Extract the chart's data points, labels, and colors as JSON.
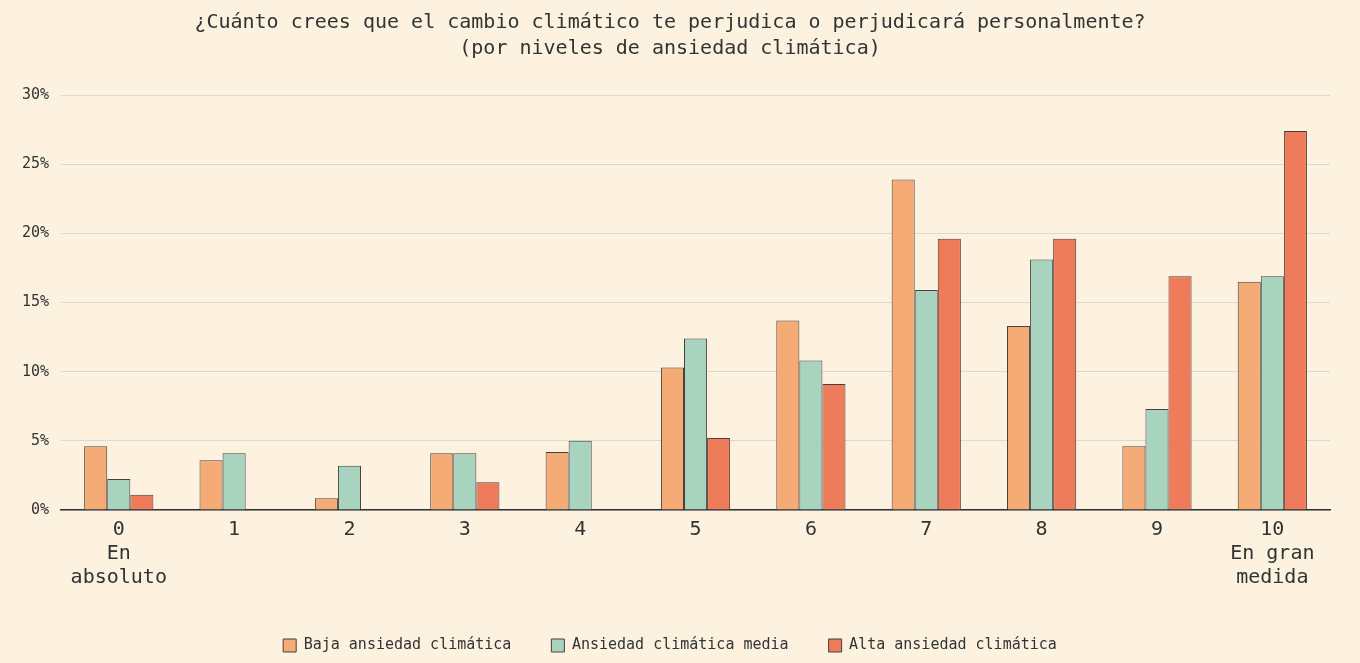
{
  "chart_data": {
    "type": "bar",
    "title": "¿Cuánto crees que el cambio climático te perjudica o perjudicará personalmente?",
    "subtitle": "(por niveles de ansiedad climática)",
    "categories": [
      "0\nEn\nabsoluto",
      "1",
      "2",
      "3",
      "4",
      "5",
      "6",
      "7",
      "8",
      "9",
      "10\nEn gran\nmedida"
    ],
    "series": [
      {
        "name": "Baja ansiedad climática",
        "color": "#f4ab76",
        "values": [
          4.6,
          3.6,
          0.85,
          4.1,
          4.2,
          10.3,
          13.7,
          23.9,
          13.3,
          4.6,
          16.5
        ]
      },
      {
        "name": "Ansiedad climática media",
        "color": "#a8d3be",
        "values": [
          2.25,
          4.1,
          3.2,
          4.1,
          5.0,
          12.4,
          10.8,
          15.9,
          18.1,
          7.3,
          16.9
        ]
      },
      {
        "name": "Alta ansiedad climática",
        "color": "#ee7b5a",
        "values": [
          1.1,
          null,
          null,
          2.0,
          null,
          5.2,
          9.1,
          19.6,
          19.6,
          16.9,
          27.4
        ]
      }
    ],
    "ylim": [
      0,
      30
    ],
    "yticks": [
      {
        "value": 0,
        "label": "0%"
      },
      {
        "value": 5,
        "label": "5%"
      },
      {
        "value": 10,
        "label": "10%"
      },
      {
        "value": 15,
        "label": "15%"
      },
      {
        "value": 20,
        "label": "20%"
      },
      {
        "value": 25,
        "label": "25%"
      },
      {
        "value": 30,
        "label": "30%"
      }
    ],
    "grid": "y",
    "legend": "bottom"
  }
}
